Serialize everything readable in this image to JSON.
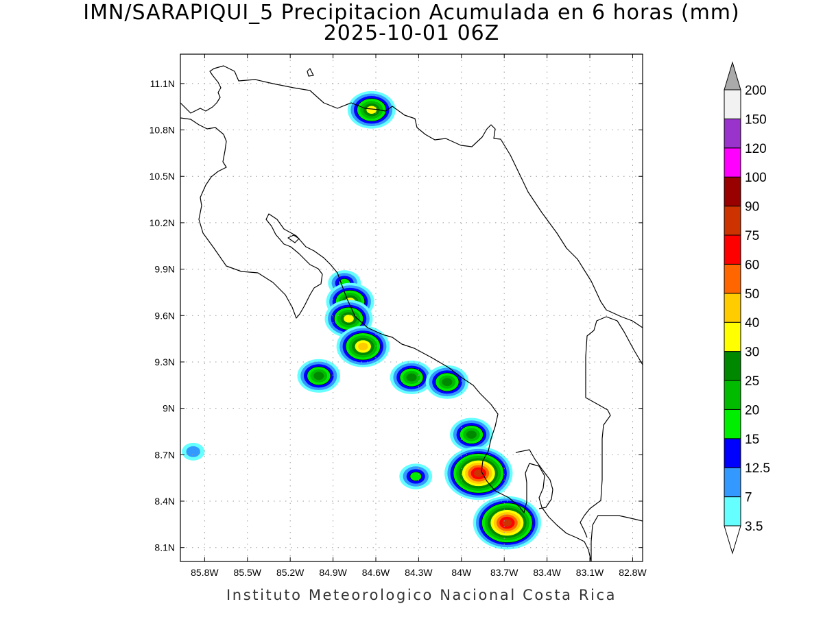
{
  "map": {
    "title_line1": "IMN/SARAPIQUI_5 Precipitacion Acumulada en 6 horas (mm)",
    "title_line2": "2025-10-01 06Z",
    "footer": "Instituto Meteorologico Nacional Costa Rica",
    "lon_labels": [
      "85.8W",
      "85.5W",
      "85.2W",
      "84.9W",
      "84.6W",
      "84.3W",
      "84W",
      "83.7W",
      "83.4W",
      "83.1W",
      "82.8W"
    ],
    "lat_labels": [
      "11.1N",
      "10.8N",
      "10.5N",
      "10.2N",
      "9.9N",
      "9.6N",
      "9.3N",
      "9N",
      "8.7N",
      "8.4N",
      "8.1N"
    ],
    "extent": {
      "lon_min": -85.97,
      "lon_max": -82.73,
      "lat_min": 8.01,
      "lat_max": 11.29
    }
  },
  "colorbar": {
    "unit": "mm",
    "levels": [
      "3.5",
      "7",
      "12.5",
      "15",
      "20",
      "25",
      "30",
      "40",
      "50",
      "60",
      "75",
      "90",
      "100",
      "120",
      "150",
      "200"
    ],
    "colors": [
      "#66ffff",
      "#3399ff",
      "#0000ff",
      "#00ee00",
      "#00bb00",
      "#008800",
      "#ffff00",
      "#ffcc00",
      "#ff6600",
      "#ff0000",
      "#cc3300",
      "#990000",
      "#ff00ff",
      "#9933cc",
      "#f2f2f2",
      "#aaaaaa"
    ],
    "legend_title": ""
  },
  "precip_cells": [
    {
      "lon": -84.63,
      "lat": 10.93,
      "peak_mm": 30
    },
    {
      "lon": -84.82,
      "lat": 9.81,
      "peak_mm": 15
    },
    {
      "lon": -84.78,
      "lat": 9.69,
      "peak_mm": 30
    },
    {
      "lon": -84.79,
      "lat": 9.58,
      "peak_mm": 30
    },
    {
      "lon": -84.69,
      "lat": 9.4,
      "peak_mm": 40
    },
    {
      "lon": -85.0,
      "lat": 9.21,
      "peak_mm": 25
    },
    {
      "lon": -84.35,
      "lat": 9.2,
      "peak_mm": 25
    },
    {
      "lon": -84.1,
      "lat": 9.17,
      "peak_mm": 25
    },
    {
      "lon": -83.93,
      "lat": 8.83,
      "peak_mm": 25
    },
    {
      "lon": -83.88,
      "lat": 8.58,
      "peak_mm": 75
    },
    {
      "lon": -84.32,
      "lat": 8.56,
      "peak_mm": 15
    },
    {
      "lon": -83.68,
      "lat": 8.26,
      "peak_mm": 75
    },
    {
      "lon": -85.88,
      "lat": 8.72,
      "peak_mm": 7
    }
  ]
}
